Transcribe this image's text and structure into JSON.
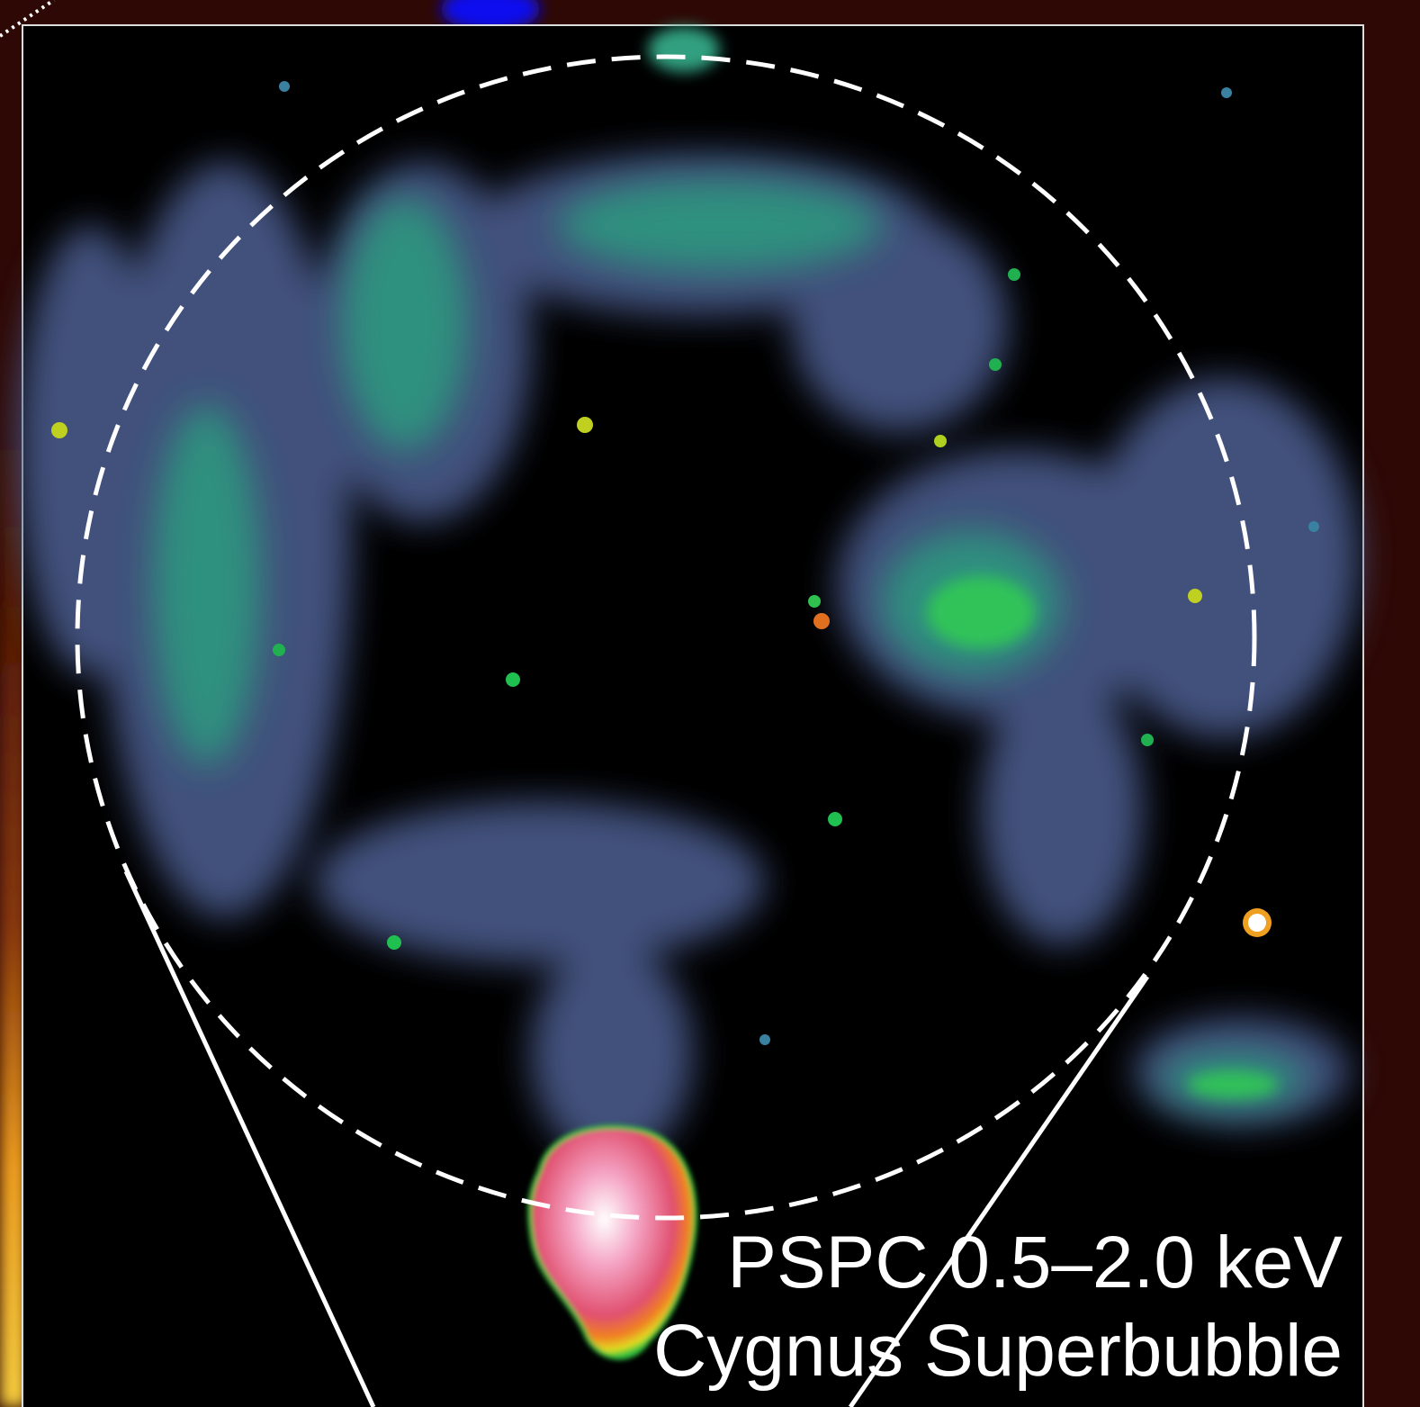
{
  "caption": {
    "line1": "PSPC 0.5–2.0 keV",
    "line2": "Cygnus Superbubble"
  }
}
